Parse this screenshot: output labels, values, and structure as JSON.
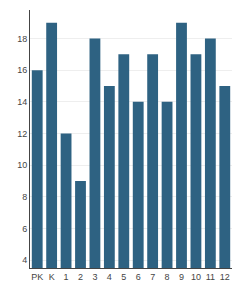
{
  "chart_data": {
    "type": "bar",
    "categories": [
      "PK",
      "K",
      "1",
      "2",
      "3",
      "4",
      "5",
      "6",
      "7",
      "8",
      "9",
      "10",
      "11",
      "12"
    ],
    "values": [
      16,
      19,
      12,
      9,
      18,
      15,
      17,
      14,
      17,
      14,
      19,
      17,
      18,
      15
    ],
    "color": "#2e6282",
    "ylim": [
      3.5,
      19.8
    ],
    "yticks": [
      4,
      6,
      8,
      10,
      12,
      14,
      16,
      18
    ],
    "grid": true
  }
}
